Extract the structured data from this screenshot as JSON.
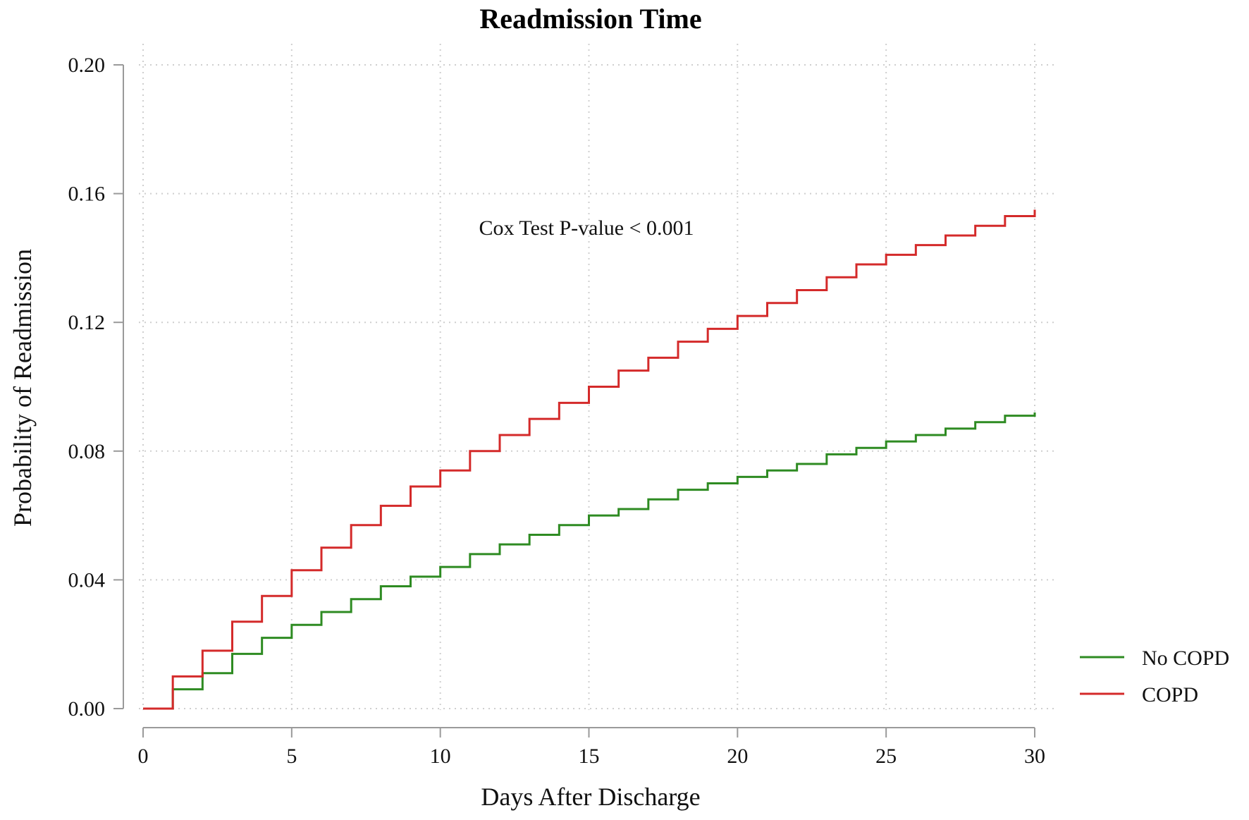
{
  "chart_data": {
    "type": "line",
    "step": true,
    "title": "Readmission Time",
    "xlabel": "Days After Discharge",
    "ylabel": "Probability of Readmission",
    "xlim": [
      0,
      30
    ],
    "ylim": [
      0,
      0.2
    ],
    "xticks": [
      "0",
      "5",
      "10",
      "15",
      "20",
      "25",
      "30"
    ],
    "yticks": [
      "0.00",
      "0.04",
      "0.08",
      "0.12",
      "0.16",
      "0.20"
    ],
    "grid": true,
    "legend_position": "right",
    "annotation": "Cox Test P-value  < 0.001",
    "x": [
      0,
      1,
      2,
      3,
      4,
      5,
      6,
      7,
      8,
      9,
      10,
      11,
      12,
      13,
      14,
      15,
      16,
      17,
      18,
      19,
      20,
      21,
      22,
      23,
      24,
      25,
      26,
      27,
      28,
      29,
      30
    ],
    "series": [
      {
        "name": "No COPD",
        "color": "#2e8b22",
        "values": [
          0.0,
          0.006,
          0.011,
          0.017,
          0.022,
          0.026,
          0.03,
          0.034,
          0.038,
          0.041,
          0.044,
          0.048,
          0.051,
          0.054,
          0.057,
          0.06,
          0.062,
          0.065,
          0.068,
          0.07,
          0.072,
          0.074,
          0.076,
          0.079,
          0.081,
          0.083,
          0.085,
          0.087,
          0.089,
          0.091,
          0.092
        ]
      },
      {
        "name": "COPD",
        "color": "#d42a2a",
        "values": [
          0.0,
          0.01,
          0.018,
          0.027,
          0.035,
          0.043,
          0.05,
          0.057,
          0.063,
          0.069,
          0.074,
          0.08,
          0.085,
          0.09,
          0.095,
          0.1,
          0.105,
          0.109,
          0.114,
          0.118,
          0.122,
          0.126,
          0.13,
          0.134,
          0.138,
          0.141,
          0.144,
          0.147,
          0.15,
          0.153,
          0.155
        ]
      }
    ]
  }
}
